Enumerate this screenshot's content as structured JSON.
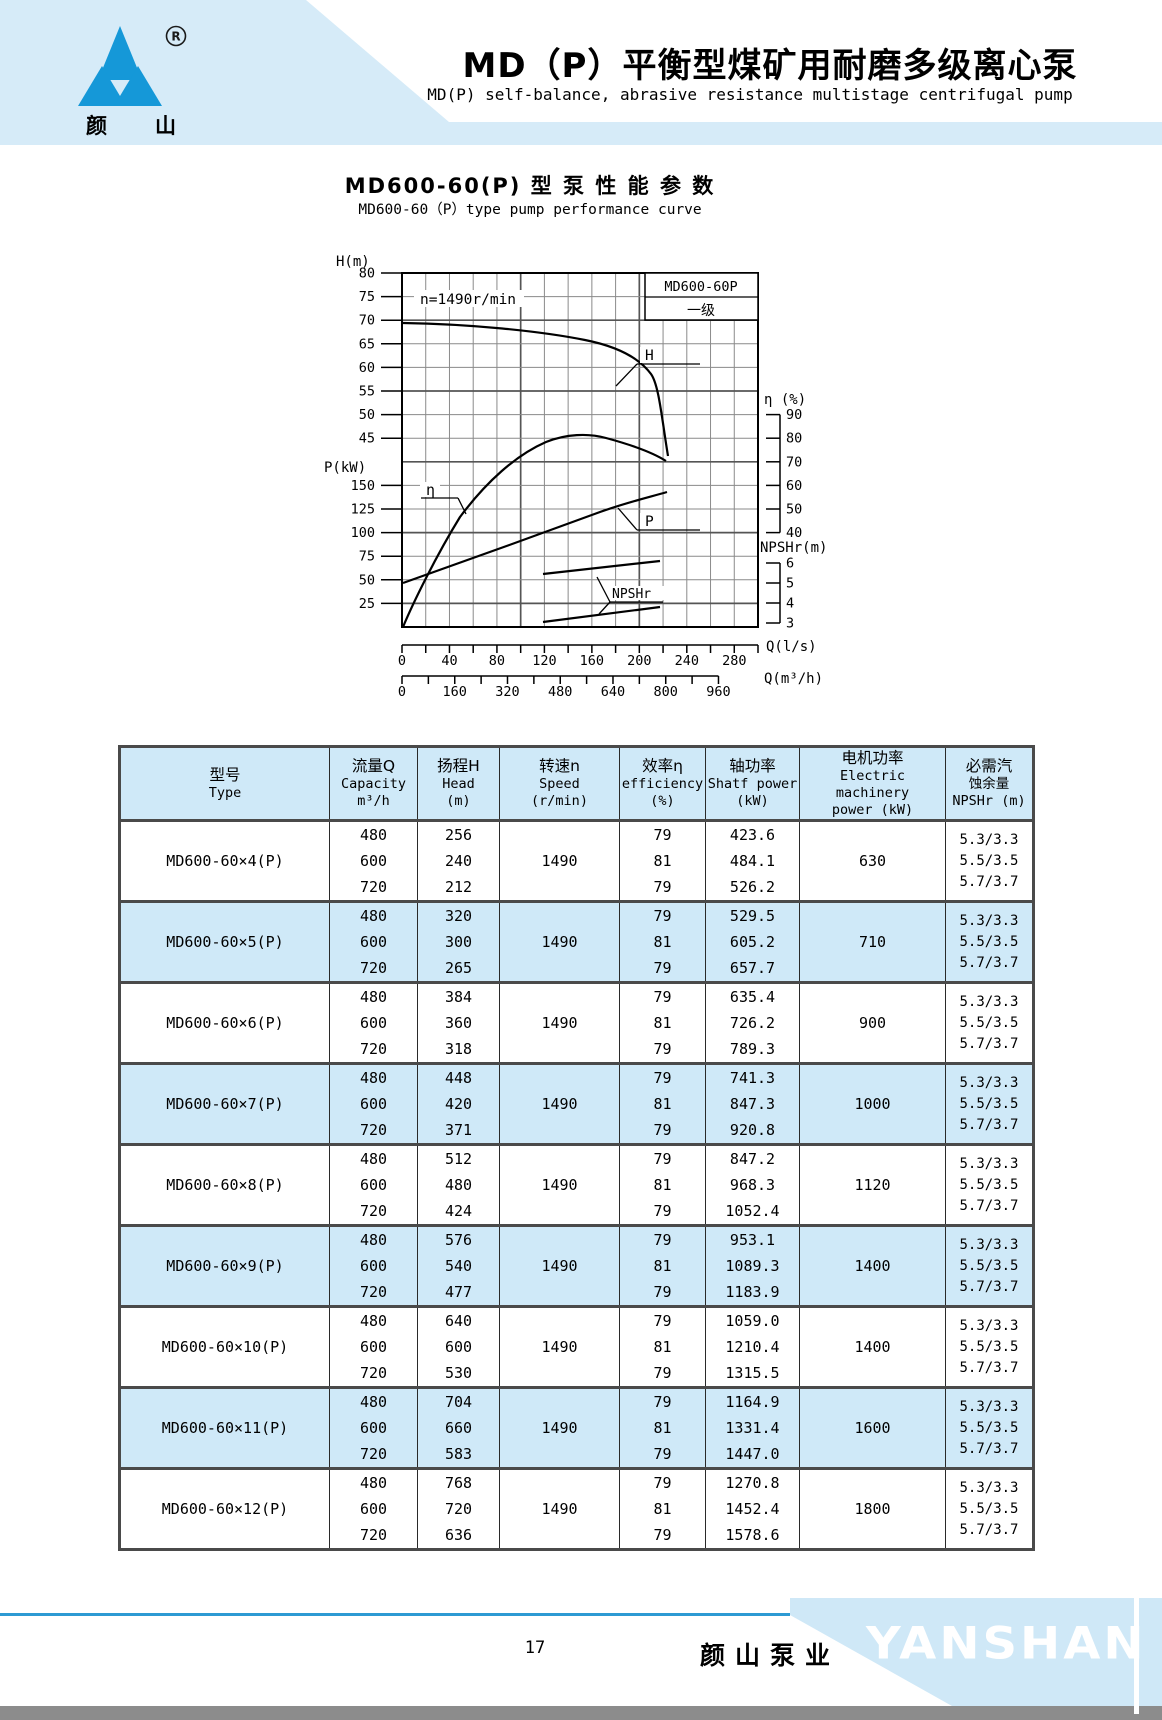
{
  "colors": {
    "band_blue": "#d6ebf8",
    "row_blue": "#cfe9f8",
    "logo_blue": "#1598d8",
    "footer_line_blue": "#2d9ad3",
    "footer_gray": "#8c8c8c"
  },
  "header": {
    "logo_cn": "颜山",
    "registered_mark": "R",
    "title": "MD（P）平衡型煤矿用耐磨多级离心泵",
    "subtitle": "MD(P) self-balance, abrasive resistance multistage centrifugal pump"
  },
  "chart_data": {
    "type": "line",
    "title": "MD600-60(P) 型 泵 性 能 参 数",
    "subtitle": "MD600-60（P）type pump performance curve",
    "annotation": "n=1490r/min",
    "model": "MD600-60P",
    "stage_note": "一级",
    "grid": true,
    "curve_labels": {
      "h": "H",
      "eta": "η",
      "p": "P",
      "npshr": "NPSHr"
    },
    "x_axes": [
      {
        "label": "Q(l/s)",
        "range": [
          0,
          300
        ],
        "ticks": [
          0,
          40,
          80,
          120,
          160,
          200,
          240,
          280
        ]
      },
      {
        "label": "Q(m³/h)",
        "range": [
          0,
          975
        ],
        "ticks": [
          0,
          160,
          320,
          480,
          640,
          800,
          960
        ]
      }
    ],
    "y_axes": [
      {
        "label": "H(m)",
        "ticks": [
          80,
          75,
          70,
          65,
          60,
          55,
          50,
          45
        ]
      },
      {
        "label": "P(kW)",
        "ticks": [
          150,
          125,
          100,
          75,
          50,
          25
        ]
      },
      {
        "label": "η (%)",
        "ticks": [
          90,
          80,
          70,
          60,
          50,
          40
        ]
      },
      {
        "label": "NPSHr(m)",
        "ticks": [
          6,
          5,
          4,
          3
        ]
      }
    ],
    "series": [
      {
        "name": "H",
        "y_axis": "H(m)",
        "x_unit": "l/s",
        "points": [
          [
            0,
            69
          ],
          [
            40,
            68.7
          ],
          [
            80,
            67.8
          ],
          [
            120,
            66.3
          ],
          [
            160,
            63.8
          ],
          [
            180,
            62
          ],
          [
            200,
            59
          ],
          [
            215,
            52
          ],
          [
            224,
            42
          ]
        ]
      },
      {
        "name": "η",
        "y_axis": "η (%)",
        "x_unit": "l/s",
        "points": [
          [
            0,
            0
          ],
          [
            20,
            16
          ],
          [
            40,
            32
          ],
          [
            60,
            45
          ],
          [
            80,
            56
          ],
          [
            100,
            64
          ],
          [
            120,
            70
          ],
          [
            140,
            75
          ],
          [
            160,
            78.5
          ],
          [
            180,
            80.3
          ],
          [
            200,
            81
          ],
          [
            212,
            80.5
          ],
          [
            224,
            79
          ]
        ]
      },
      {
        "name": "P",
        "y_axis": "P(kW)",
        "x_unit": "l/s",
        "points": [
          [
            0,
            47
          ],
          [
            40,
            60
          ],
          [
            80,
            74
          ],
          [
            120,
            89
          ],
          [
            133,
            96
          ],
          [
            160,
            106
          ],
          [
            200,
            131
          ],
          [
            224,
            143
          ]
        ]
      },
      {
        "name": "NPSHr-upper",
        "y_axis": "NPSHr(m)",
        "x_unit": "l/s",
        "points": [
          [
            119,
            5.4
          ],
          [
            160,
            5.7
          ],
          [
            200,
            5.9
          ],
          [
            217,
            6.1
          ]
        ]
      },
      {
        "name": "NPSHr-lower",
        "y_axis": "NPSHr(m)",
        "x_unit": "l/s",
        "points": [
          [
            119,
            3.1
          ],
          [
            160,
            3.4
          ],
          [
            200,
            3.7
          ],
          [
            217,
            3.8
          ]
        ]
      }
    ]
  },
  "table": {
    "headers": [
      {
        "lines": [
          "型号",
          "Type"
        ]
      },
      {
        "lines": [
          "流量Q",
          "Capacity",
          "m³/h"
        ]
      },
      {
        "lines": [
          "扬程H",
          "Head",
          "(m)"
        ]
      },
      {
        "lines": [
          "转速n",
          "Speed",
          "(r/min)"
        ]
      },
      {
        "lines": [
          "效率η",
          "efficiency",
          "(%)"
        ]
      },
      {
        "lines": [
          "轴功率",
          "Shatf power",
          "(kW)"
        ]
      },
      {
        "lines": [
          "电机功率",
          "Electric machinery",
          "power  (kW)"
        ]
      },
      {
        "lines": [
          "必需汽",
          "蚀余量",
          "NPSHr (m)"
        ]
      }
    ],
    "rows": [
      {
        "type": "MD600-60×4(P)",
        "capacity": [
          "480",
          "600",
          "720"
        ],
        "head": [
          "256",
          "240",
          "212"
        ],
        "speed": "1490",
        "efficiency": [
          "79",
          "81",
          "79"
        ],
        "shaft_power": [
          "423.6",
          "484.1",
          "526.2"
        ],
        "motor_power": "630",
        "npshr": [
          "5.3/3.3",
          "5.5/3.5",
          "5.7/3.7"
        ]
      },
      {
        "type": "MD600-60×5(P)",
        "capacity": [
          "480",
          "600",
          "720"
        ],
        "head": [
          "320",
          "300",
          "265"
        ],
        "speed": "1490",
        "efficiency": [
          "79",
          "81",
          "79"
        ],
        "shaft_power": [
          "529.5",
          "605.2",
          "657.7"
        ],
        "motor_power": "710",
        "npshr": [
          "5.3/3.3",
          "5.5/3.5",
          "5.7/3.7"
        ]
      },
      {
        "type": "MD600-60×6(P)",
        "capacity": [
          "480",
          "600",
          "720"
        ],
        "head": [
          "384",
          "360",
          "318"
        ],
        "speed": "1490",
        "efficiency": [
          "79",
          "81",
          "79"
        ],
        "shaft_power": [
          "635.4",
          "726.2",
          "789.3"
        ],
        "motor_power": "900",
        "npshr": [
          "5.3/3.3",
          "5.5/3.5",
          "5.7/3.7"
        ]
      },
      {
        "type": "MD600-60×7(P)",
        "capacity": [
          "480",
          "600",
          "720"
        ],
        "head": [
          "448",
          "420",
          "371"
        ],
        "speed": "1490",
        "efficiency": [
          "79",
          "81",
          "79"
        ],
        "shaft_power": [
          "741.3",
          "847.3",
          "920.8"
        ],
        "motor_power": "1000",
        "npshr": [
          "5.3/3.3",
          "5.5/3.5",
          "5.7/3.7"
        ]
      },
      {
        "type": "MD600-60×8(P)",
        "capacity": [
          "480",
          "600",
          "720"
        ],
        "head": [
          "512",
          "480",
          "424"
        ],
        "speed": "1490",
        "efficiency": [
          "79",
          "81",
          "79"
        ],
        "shaft_power": [
          "847.2",
          "968.3",
          "1052.4"
        ],
        "motor_power": "1120",
        "npshr": [
          "5.3/3.3",
          "5.5/3.5",
          "5.7/3.7"
        ]
      },
      {
        "type": "MD600-60×9(P)",
        "capacity": [
          "480",
          "600",
          "720"
        ],
        "head": [
          "576",
          "540",
          "477"
        ],
        "speed": "1490",
        "efficiency": [
          "79",
          "81",
          "79"
        ],
        "shaft_power": [
          "953.1",
          "1089.3",
          "1183.9"
        ],
        "motor_power": "1400",
        "npshr": [
          "5.3/3.3",
          "5.5/3.5",
          "5.7/3.7"
        ]
      },
      {
        "type": "MD600-60×10(P)",
        "capacity": [
          "480",
          "600",
          "720"
        ],
        "head": [
          "640",
          "600",
          "530"
        ],
        "speed": "1490",
        "efficiency": [
          "79",
          "81",
          "79"
        ],
        "shaft_power": [
          "1059.0",
          "1210.4",
          "1315.5"
        ],
        "motor_power": "1400",
        "npshr": [
          "5.3/3.3",
          "5.5/3.5",
          "5.7/3.7"
        ]
      },
      {
        "type": "MD600-60×11(P)",
        "capacity": [
          "480",
          "600",
          "720"
        ],
        "head": [
          "704",
          "660",
          "583"
        ],
        "speed": "1490",
        "efficiency": [
          "79",
          "81",
          "79"
        ],
        "shaft_power": [
          "1164.9",
          "1331.4",
          "1447.0"
        ],
        "motor_power": "1600",
        "npshr": [
          "5.3/3.3",
          "5.5/3.5",
          "5.7/3.7"
        ]
      },
      {
        "type": "MD600-60×12(P)",
        "capacity": [
          "480",
          "600",
          "720"
        ],
        "head": [
          "768",
          "720",
          "636"
        ],
        "speed": "1490",
        "efficiency": [
          "79",
          "81",
          "79"
        ],
        "shaft_power": [
          "1270.8",
          "1452.4",
          "1578.6"
        ],
        "motor_power": "1800",
        "npshr": [
          "5.3/3.3",
          "5.5/3.5",
          "5.7/3.7"
        ]
      }
    ]
  },
  "footer": {
    "page_number": "17",
    "brand_cn": "颜山泵业",
    "brand_en": "YANSHAN"
  }
}
